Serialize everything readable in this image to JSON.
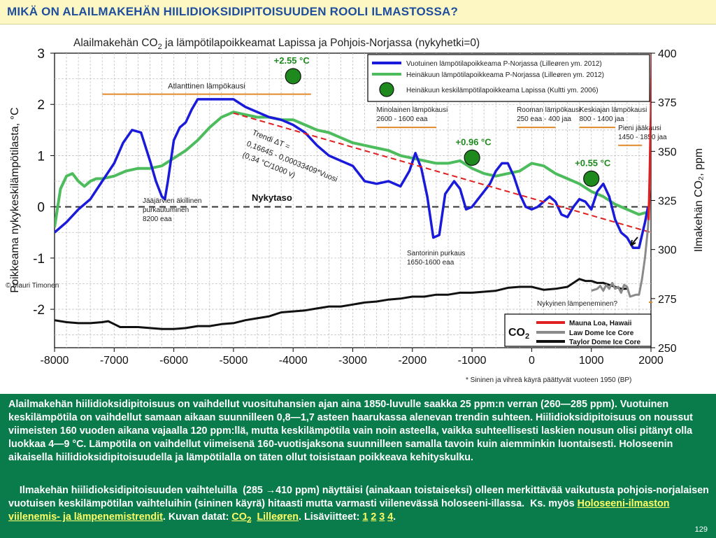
{
  "header": {
    "title": "MIKÄ ON ALAILMAKEHÄN HIILIDIOKSIDIPITOISUUDEN ROOLI ILMASTOSSA?"
  },
  "chart_data": {
    "type": "line",
    "title_main": "Alailmakehän CO",
    "title_sub": "2",
    "title_rest": " ja lämpötilapoikkeamat Lapissa ja Pohjois-Norjassa (nykyhetki=0)",
    "ylabel_left": "Poikkeama nykykeskilämpötilasta, °C",
    "ylabel_right": "Ilmakehän CO₂, ppm",
    "xlim": [
      -8000,
      2000
    ],
    "ylim_left": [
      -2.75,
      3
    ],
    "ylim_right": [
      250,
      400
    ],
    "xticks": [
      "-8000",
      "-7000",
      "-6000",
      "-5000",
      "-4000",
      "-3000",
      "-2000",
      "-1000",
      "0",
      "1000",
      "2000"
    ],
    "xtick_values": [
      -8000,
      -7000,
      -6000,
      -5000,
      -4000,
      -3000,
      -2000,
      -1000,
      0,
      1000,
      2000
    ],
    "yticks_left": [
      "3",
      "2",
      "1",
      "0",
      "-1",
      "-2"
    ],
    "ytick_values_left": [
      3,
      2,
      1,
      0,
      -1,
      -2
    ],
    "yticks_right": [
      "400",
      "375",
      "350",
      "325",
      "300",
      "275",
      "250"
    ],
    "ytick_values_right": [
      400,
      375,
      350,
      325,
      300,
      275,
      250
    ],
    "grid": true,
    "legend": {
      "blue": "Vuotuinen lämpötilapoikkeama P-Norjassa (Lilleøren ym. 2012)",
      "green": "Heinäkuun lämpötilapoikkeama P-Norjassa (Lilleøren ym. 2012)",
      "dot": "Heinäkuun keskilämpötilapoikkeama Lapissa (Kultti ym. 2006)"
    },
    "co2_legend": {
      "title": "CO",
      "sub": "2",
      "red": "Mauna Loa, Hawaii",
      "gray": "Law Dome Ice Core",
      "black": "Taylor Dome Ice Core"
    },
    "colors": {
      "blue": "#1a1adb",
      "green": "#4cbc5c",
      "dot": "#1e8a1e",
      "orange": "#e08a2a",
      "trend": "#e02020",
      "red": "#e02020",
      "gray": "#8a8a8a",
      "black": "#111111"
    },
    "series_blue": {
      "x": [
        -8000,
        -7800,
        -7600,
        -7400,
        -7200,
        -7000,
        -6850,
        -6700,
        -6550,
        -6400,
        -6300,
        -6200,
        -6150,
        -6100,
        -6000,
        -5900,
        -5800,
        -5700,
        -5600,
        -5500,
        -5400,
        -5200,
        -5000,
        -4800,
        -4600,
        -4400,
        -4200,
        -4000,
        -3800,
        -3600,
        -3400,
        -3200,
        -3000,
        -2800,
        -2600,
        -2400,
        -2200,
        -2050,
        -1950,
        -1850,
        -1750,
        -1650,
        -1550,
        -1450,
        -1300,
        -1200,
        -1100,
        -1000,
        -900,
        -800,
        -700,
        -600,
        -500,
        -400,
        -300,
        -200,
        -100,
        0,
        100,
        200,
        300,
        400,
        500,
        600,
        700,
        800,
        900,
        1000,
        1100,
        1200,
        1300,
        1400,
        1500,
        1600,
        1700,
        1800,
        1900,
        1950
      ],
      "y": [
        -0.5,
        -0.3,
        -0.05,
        0.15,
        0.5,
        0.85,
        1.25,
        1.5,
        1.45,
        0.9,
        0.5,
        0.2,
        0.15,
        0.5,
        1.3,
        1.55,
        1.65,
        1.9,
        2.1,
        2.1,
        2.1,
        2.1,
        2.1,
        1.95,
        1.85,
        1.75,
        1.7,
        1.6,
        1.45,
        1.2,
        1.0,
        0.9,
        0.8,
        0.5,
        0.45,
        0.5,
        0.4,
        0.7,
        1.05,
        0.75,
        0.2,
        -0.6,
        -0.55,
        0.25,
        0.5,
        0.35,
        -0.05,
        0.0,
        0.15,
        0.3,
        0.45,
        0.7,
        0.85,
        0.85,
        0.6,
        0.25,
        0.0,
        -0.05,
        0.0,
        0.1,
        0.2,
        0.1,
        -0.15,
        -0.2,
        0.0,
        0.15,
        0.1,
        -0.05,
        0.3,
        0.45,
        0.2,
        -0.25,
        -0.5,
        -0.6,
        -0.8,
        -0.8,
        -0.3,
        0.0
      ],
      "note": ""
    },
    "series_green": {
      "x": [
        -8000,
        -7900,
        -7800,
        -7700,
        -7600,
        -7500,
        -7400,
        -7300,
        -7200,
        -7000,
        -6800,
        -6600,
        -6400,
        -6200,
        -6000,
        -5800,
        -5600,
        -5400,
        -5200,
        -5000,
        -4800,
        -4600,
        -4400,
        -4200,
        -4000,
        -3800,
        -3600,
        -3400,
        -3200,
        -3000,
        -2800,
        -2600,
        -2400,
        -2200,
        -2000,
        -1800,
        -1600,
        -1400,
        -1200,
        -1000,
        -800,
        -600,
        -400,
        -200,
        0,
        200,
        400,
        600,
        800,
        1000,
        1200,
        1400,
        1600,
        1800,
        1950
      ],
      "y": [
        -0.4,
        0.35,
        0.6,
        0.65,
        0.5,
        0.4,
        0.5,
        0.55,
        0.55,
        0.6,
        0.7,
        0.75,
        0.75,
        0.8,
        0.95,
        1.1,
        1.3,
        1.55,
        1.75,
        1.85,
        1.8,
        1.75,
        1.75,
        1.7,
        1.7,
        1.6,
        1.5,
        1.45,
        1.35,
        1.25,
        1.2,
        1.15,
        1.1,
        1.0,
        0.95,
        0.9,
        0.85,
        0.85,
        0.9,
        0.75,
        0.65,
        0.6,
        0.65,
        0.7,
        0.85,
        0.8,
        0.65,
        0.55,
        0.45,
        0.3,
        0.2,
        0.05,
        -0.05,
        -0.15,
        -0.1
      ],
      "note": ""
    },
    "dots": {
      "x": [
        -4000,
        -1000,
        1000
      ],
      "y": [
        2.55,
        0.96,
        0.55
      ],
      "labels": [
        "+2.55 °C",
        "+0.96 °C",
        "+0.55 °C"
      ]
    },
    "trend": {
      "label_1": "Trendi ΔT =",
      "label_2": "0,16645 - 0,00033409*Vuosi",
      "label_3": "(0,34 °C/1000 v)",
      "x": [
        -5000,
        2000
      ],
      "y": [
        1.83,
        -0.5
      ]
    },
    "nykytaso": {
      "label": "Nykytaso",
      "y": 0
    },
    "periods": [
      {
        "label": "Atlanttinen lämpökausi",
        "sublabel": "",
        "x": [
          -7200,
          -3700
        ],
        "y": 2.2
      },
      {
        "label": "Minolainen lämpökausi",
        "sublabel": "2600 - 1600 eaa",
        "x": [
          -2600,
          -1600
        ],
        "y": 1.55
      },
      {
        "label": "Rooman lämpökausi",
        "sublabel": "250 eaa - 400 jaa",
        "x": [
          -250,
          400
        ],
        "y": 1.55
      },
      {
        "label": "Keskiajan lämpökausi",
        "sublabel": "800 - 1400 jaa",
        "x": [
          800,
          1400
        ],
        "y": 1.55
      },
      {
        "label": "Pieni jääkausi",
        "sublabel": "1450 - 1850 jaa",
        "x": [
          1450,
          1850
        ],
        "y": 1.2
      }
    ],
    "annotations": {
      "jaajarvi_1": "Jääjärvien äkillinen",
      "jaajarvi_2": "purkautuminen",
      "jaajarvi_3": "8200 eaa",
      "santorini_1": "Santorinin purkaus",
      "santorini_2": "1650-1600 eaa",
      "nykyinen": "Nykyinen lämpeneminen?",
      "copyright": "© Mauri Timonen",
      "footnote": "* Sininen ja vihreä käyrä päättyvät vuoteen 1950 (BP)"
    },
    "co2_taylor": {
      "x": [
        -8000,
        -7800,
        -7600,
        -7400,
        -7200,
        -7100,
        -7000,
        -6900,
        -6800,
        -6600,
        -6400,
        -6200,
        -6000,
        -5800,
        -5600,
        -5400,
        -5200,
        -5000,
        -4800,
        -4600,
        -4400,
        -4200,
        -4000,
        -3800,
        -3600,
        -3400,
        -3200,
        -3000,
        -2800,
        -2600,
        -2400,
        -2200,
        -2000,
        -1800,
        -1600,
        -1400,
        -1200,
        -1000,
        -800,
        -600,
        -400,
        -200,
        0,
        200,
        400,
        600,
        800,
        900,
        1000,
        1100,
        1200,
        1300,
        1400,
        1500,
        1600
      ],
      "y": [
        264,
        263,
        262.5,
        262.5,
        263,
        263.5,
        262,
        260.5,
        260.5,
        260.5,
        260,
        259.5,
        259.5,
        260,
        261,
        261,
        262,
        262.5,
        264,
        265,
        266,
        268,
        268.5,
        269,
        270,
        271,
        271,
        272,
        273,
        273.5,
        274.5,
        275,
        276,
        276,
        277,
        277,
        278,
        278,
        278.5,
        279,
        280.5,
        281,
        281,
        279.5,
        280,
        281,
        285,
        284,
        284,
        283,
        283,
        282,
        281,
        280,
        280
      ]
    },
    "co2_law": {
      "x": [
        1000,
        1100,
        1150,
        1200,
        1250,
        1300,
        1350,
        1400,
        1450,
        1500,
        1550,
        1600,
        1650,
        1700,
        1750,
        1800,
        1850,
        1900,
        1950,
        1980,
        2000
      ],
      "y": [
        279,
        280,
        281.5,
        279,
        282,
        280,
        283,
        280,
        281,
        278,
        282,
        281,
        276,
        276.5,
        277,
        277,
        285,
        296,
        311,
        330,
        340
      ]
    },
    "co2_mauna": {
      "x": [
        1958,
        1970,
        1980,
        1990,
        2000,
        2010,
        2015
      ],
      "y": [
        315,
        325,
        339,
        354,
        369,
        389,
        400
      ]
    }
  },
  "footer": {
    "p1": "Alailmakehän hiilidioksidipitoisuus on vaihdellut vuosituhansien ajan aina 1850-luvulle saakka 25 ppm:n verran (260—285 ppm). Vuotuinen keskilämpötila on vaihdellut samaan aikaan suunnilleen 0,8—1,7 asteen haarukassa alenevan trendin suhteen. Hiilidioksidipitoisuus on noussut viimeisten 160 vuoden aikana vajaalla 120 ppm:llä, mutta keskilämpötila vain noin asteella, vaikka suhteellisesti laskien nousun olisi pitänyt olla luokkaa 4—9 °C. Lämpötila on vaihdellut viimeisenä 160-vuotisjaksona suunnilleen samalla tavoin kuin aiemminkin luontaisesti. Holoseenin aikaisella hiilidioksidipitoisuudella ja lämpötilalla on täten ollut toisistaan poikkeava kehityskulku.",
    "p2_a": "    Ilmakehän hiilidioksidipitoisuuden vaihteluilla  (285 →410 ppm) näyttäisi (ainakaan toistaiseksi) olleen merkittävää vaikutusta pohjois-norjalaisen vuotuisen keskilämpötilan vaihteluihin (sininen käyrä) hitaasti mutta varmasti viilenevässä holoseeni-illassa.  Ks. myös ",
    "link1": "Holoseeni-ilmaston viilenemis- ja lämpenemistrendit",
    "p2_b": ". Kuvan datat: ",
    "link2": "CO",
    "link2_sub": "2",
    "p2_c": "  ",
    "link3": "Lilleøren",
    "p2_d": ". Lisäviitteet: ",
    "ref1": "1",
    "ref2": "2",
    "ref3": "3",
    "ref4": "4",
    "p2_e": ".",
    "page_number": "129"
  }
}
